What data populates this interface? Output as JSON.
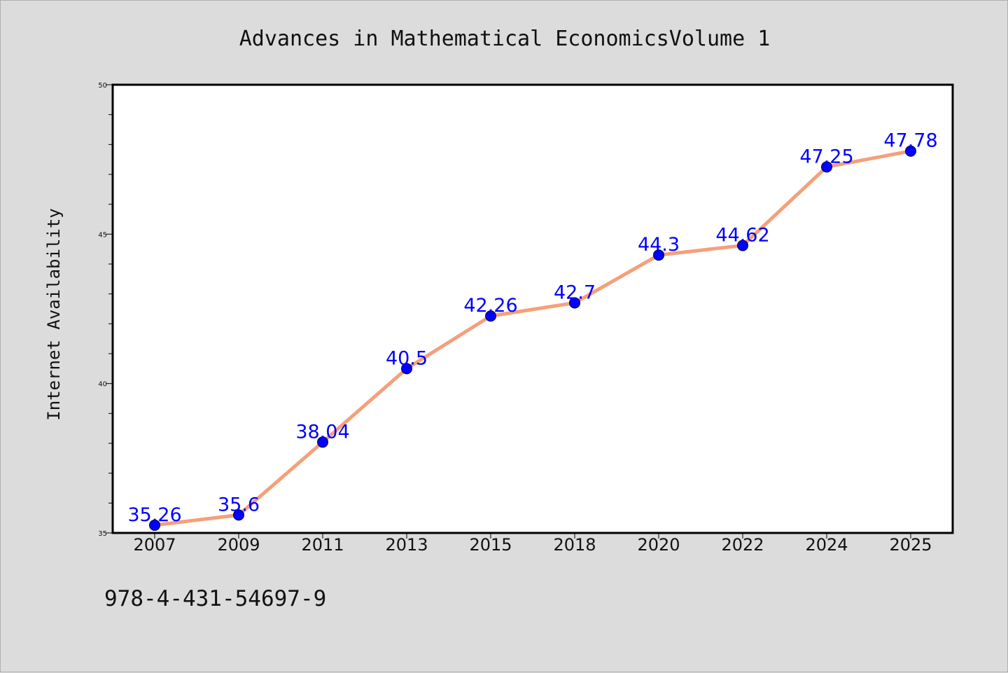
{
  "chart_data": {
    "type": "line",
    "title": "Advances in Mathematical EconomicsVolume 1",
    "xlabel": "",
    "ylabel": "Internet Availability",
    "categories": [
      "2007",
      "2009",
      "2011",
      "2013",
      "2015",
      "2018",
      "2020",
      "2022",
      "2024",
      "2025"
    ],
    "series": [
      {
        "values": [
          35.26,
          35.6,
          38.04,
          40.5,
          42.26,
          42.7,
          44.3,
          44.62,
          47.25,
          47.78
        ]
      }
    ],
    "data_labels": [
      "35.26",
      "35.6",
      "38.04",
      "40.5",
      "42.26",
      "42.7",
      "44.3",
      "44.62",
      "47.25",
      "47.78"
    ],
    "ylim": [
      35,
      50
    ],
    "yticks": [
      "35",
      "40",
      "45",
      "50"
    ],
    "grid": false,
    "legend": "none",
    "colors": {
      "line": "#f4a07a",
      "marker": "#0000ff",
      "data_label": "#0000ff",
      "background": "#dcdcdc",
      "plot_area": "#ffffff"
    }
  },
  "footer": {
    "isbn": "978-4-431-54697-9"
  }
}
